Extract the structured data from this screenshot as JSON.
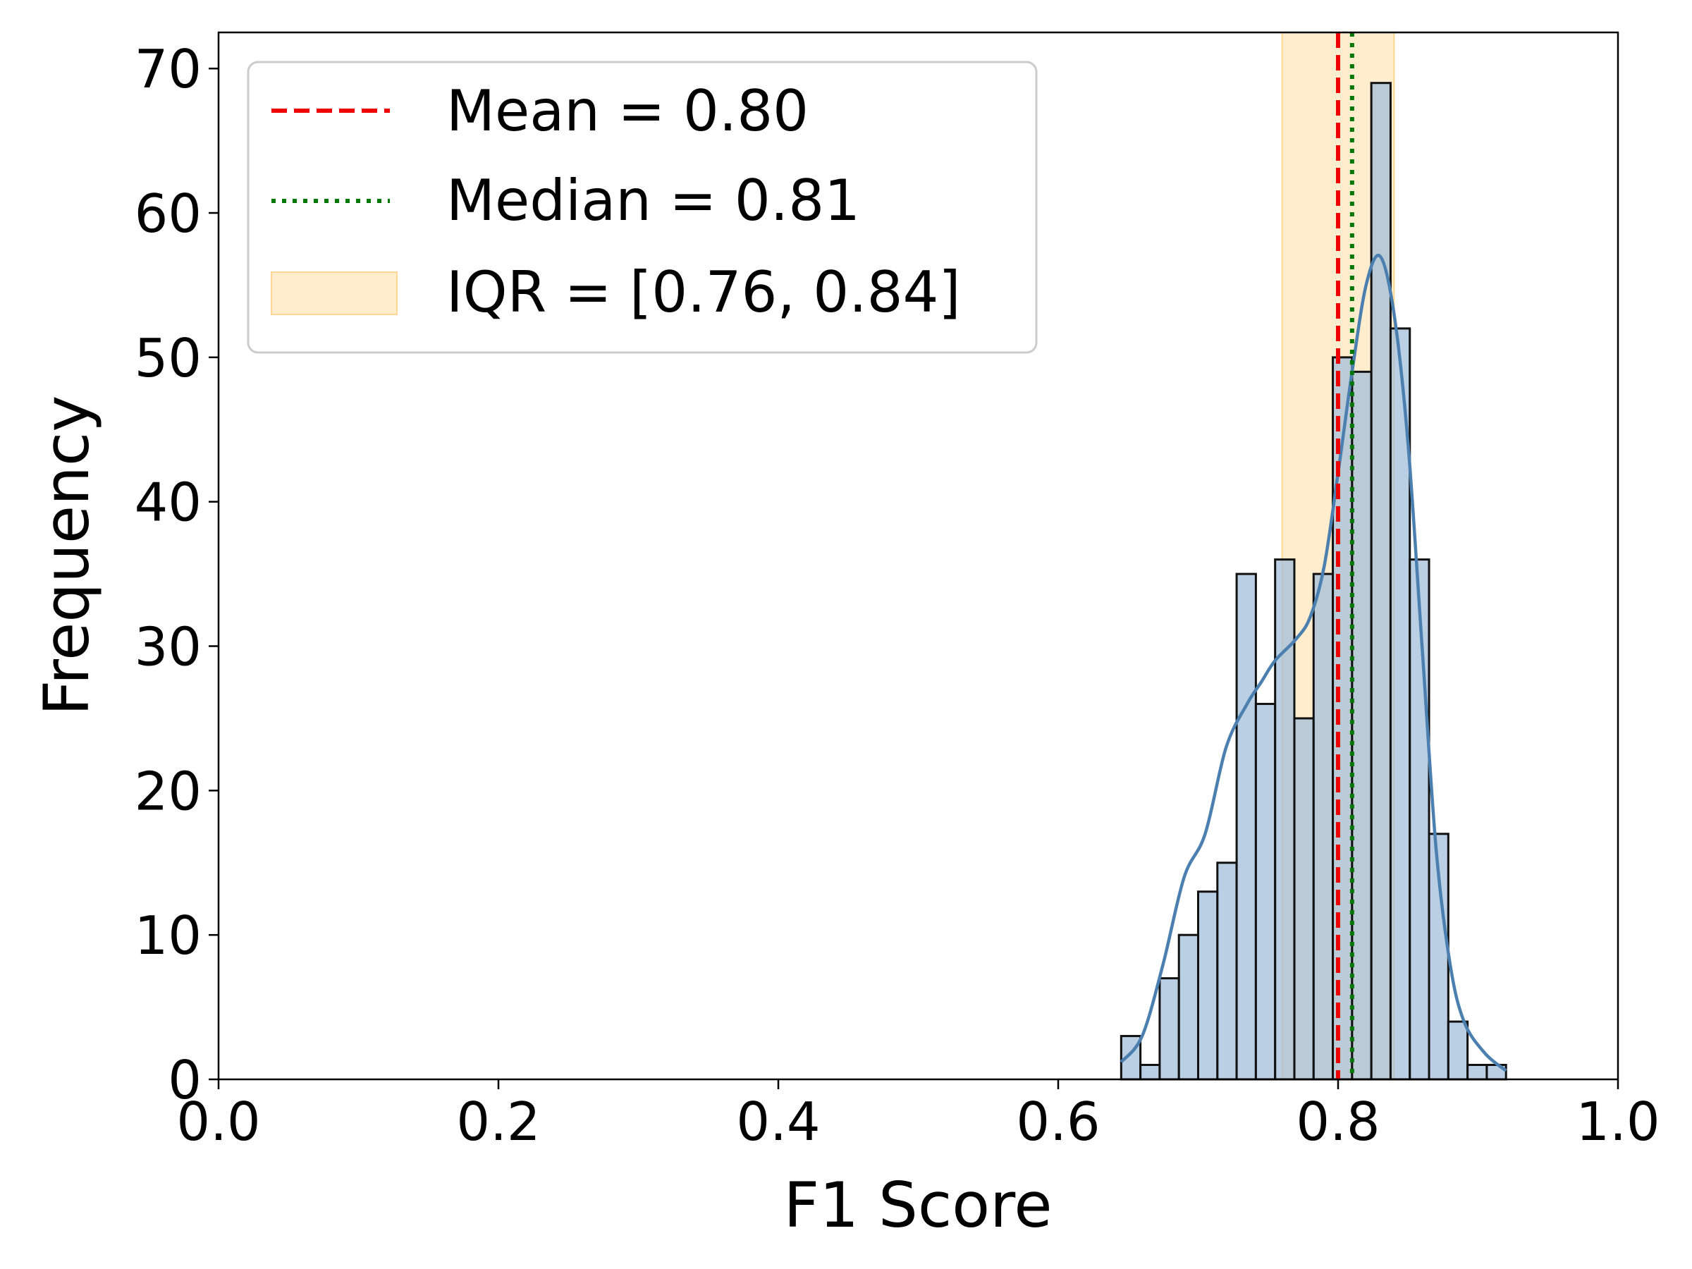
{
  "colors": {
    "bar_fill": "#a3bfda",
    "bar_edge": "#111111",
    "kde_line": "#4a7fb0",
    "mean_line": "#ee0000",
    "median_line": "#007700",
    "iqr_fill": "#ffd792",
    "legend_border": "#cccccc"
  },
  "chart_data": {
    "type": "bar",
    "title": "",
    "xlabel": "F1 Score",
    "ylabel": "Frequency",
    "xlim": [
      0.0,
      1.0
    ],
    "ylim": [
      0,
      72.5
    ],
    "x_ticks": [
      "0.0",
      "0.2",
      "0.4",
      "0.6",
      "0.8",
      "1.0"
    ],
    "y_ticks": [
      "0",
      "10",
      "20",
      "30",
      "40",
      "50",
      "60",
      "70"
    ],
    "grid": false,
    "legend_position": "top-left",
    "bin_start": 0.645,
    "bin_width": 0.01375,
    "bin_counts": [
      3,
      1,
      7,
      10,
      13,
      15,
      35,
      26,
      36,
      25,
      35,
      50,
      49,
      69,
      52,
      36,
      17,
      4,
      1,
      1
    ],
    "kde": {
      "x": [
        0.645,
        0.66,
        0.675,
        0.69,
        0.705,
        0.72,
        0.735,
        0.745,
        0.755,
        0.77,
        0.78,
        0.79,
        0.8,
        0.81,
        0.82,
        0.83,
        0.84,
        0.85,
        0.86,
        0.87,
        0.88,
        0.89,
        0.905,
        0.92
      ],
      "y": [
        1.2,
        3,
        8,
        14,
        17,
        23,
        26,
        27.5,
        29,
        30.5,
        32,
        35.5,
        42,
        49,
        55,
        57,
        53,
        44,
        30,
        16,
        8,
        4,
        1.8,
        0.6
      ]
    },
    "mean": 0.8,
    "median": 0.81,
    "iqr": [
      0.76,
      0.84
    ],
    "legend": [
      {
        "key": "mean",
        "label": "Mean = 0.80"
      },
      {
        "key": "median",
        "label": "Median = 0.81"
      },
      {
        "key": "iqr",
        "label": "IQR = [0.76, 0.84]"
      }
    ]
  }
}
